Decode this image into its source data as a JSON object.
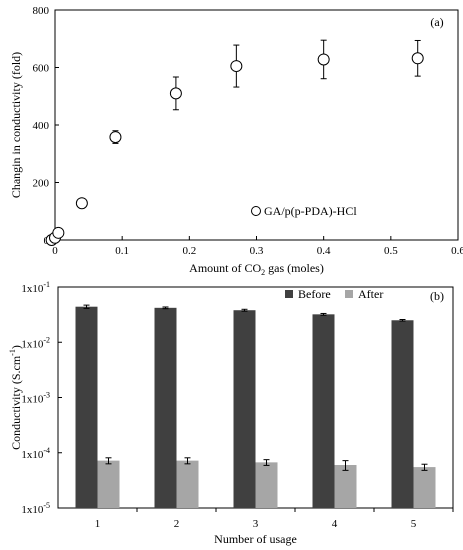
{
  "figure": {
    "panels": [
      "(a)",
      "(b)"
    ]
  },
  "chart_data": [
    {
      "type": "scatter",
      "panel_label": "(a)",
      "xlabel": {
        "prefix": "Amount of CO",
        "sub": "2",
        "suffix": " gas (moles)"
      },
      "ylabel": "Changin in conductivity (fold)",
      "xlim": [
        0,
        0.6
      ],
      "ylim": [
        0,
        800
      ],
      "x_ticks": [
        "0",
        "0.1",
        "0.2",
        "0.3",
        "0.4",
        "0.5",
        "0.6"
      ],
      "y_ticks": [
        "0",
        "200",
        "400",
        "600",
        "800"
      ],
      "grid": false,
      "legend_position": "bottom-right",
      "series": [
        {
          "name": "GA/p(p-PDA)-HCl",
          "marker": "open-circle",
          "points": [
            {
              "x": -0.005,
              "y": 0,
              "err": 0
            },
            {
              "x": 0.0,
              "y": 8,
              "err": 0
            },
            {
              "x": 0.005,
              "y": 25,
              "err": 8
            },
            {
              "x": 0.04,
              "y": 128,
              "err": 12
            },
            {
              "x": 0.09,
              "y": 358,
              "err": 22
            },
            {
              "x": 0.18,
              "y": 510,
              "err": 57
            },
            {
              "x": 0.27,
              "y": 605,
              "err": 73
            },
            {
              "x": 0.4,
              "y": 628,
              "err": 67
            },
            {
              "x": 0.54,
              "y": 632,
              "err": 62
            }
          ]
        }
      ]
    },
    {
      "type": "bar",
      "panel_label": "(b)",
      "xlabel": "Number of usage",
      "ylabel": {
        "prefix": "Conductivity (S.cm",
        "sup": "-1",
        "suffix": ")"
      },
      "y_scale": "log",
      "ylim": [
        1e-05,
        0.1
      ],
      "y_ticks": [
        {
          "base": "1x10",
          "exp": "-5"
        },
        {
          "base": "1x10",
          "exp": "-4"
        },
        {
          "base": "1x10",
          "exp": "-3"
        },
        {
          "base": "1x10",
          "exp": "-2"
        },
        {
          "base": "1x10",
          "exp": "-1"
        }
      ],
      "categories": [
        "1",
        "2",
        "3",
        "4",
        "5"
      ],
      "legend_position": "top-right",
      "series": [
        {
          "name": "Before",
          "color": "#404040",
          "values": [
            0.044,
            0.042,
            0.038,
            0.032,
            0.025
          ],
          "errors": [
            0.003,
            0.0015,
            0.0015,
            0.0012,
            0.0008
          ]
        },
        {
          "name": "After",
          "color": "#a6a6a6",
          "values": [
            7.2e-05,
            7.2e-05,
            6.7e-05,
            6e-05,
            5.5e-05
          ],
          "errors": [
            9e-06,
            9e-06,
            8e-06,
            1.2e-05,
            7e-06
          ]
        }
      ]
    }
  ]
}
